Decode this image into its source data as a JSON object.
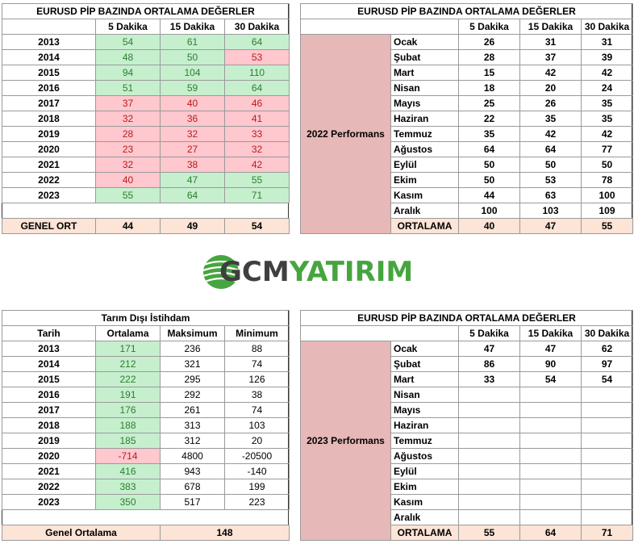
{
  "table1": {
    "title": "EURUSD  PİP BAZINDA ORTALAMA DEĞERLER",
    "headers": [
      "",
      "5 Dakika",
      "15 Dakika",
      "30 Dakika"
    ],
    "rows": [
      {
        "year": "2013",
        "v5": "54",
        "v15": "61",
        "v30": "64",
        "c5": "g",
        "c15": "g",
        "c30": "g"
      },
      {
        "year": "2014",
        "v5": "48",
        "v15": "50",
        "v30": "53",
        "c5": "g",
        "c15": "g",
        "c30": "r"
      },
      {
        "year": "2015",
        "v5": "94",
        "v15": "104",
        "v30": "110",
        "c5": "g",
        "c15": "g",
        "c30": "g"
      },
      {
        "year": "2016",
        "v5": "51",
        "v15": "59",
        "v30": "64",
        "c5": "g",
        "c15": "g",
        "c30": "g"
      },
      {
        "year": "2017",
        "v5": "37",
        "v15": "40",
        "v30": "46",
        "c5": "r",
        "c15": "r",
        "c30": "r"
      },
      {
        "year": "2018",
        "v5": "32",
        "v15": "36",
        "v30": "41",
        "c5": "r",
        "c15": "r",
        "c30": "r"
      },
      {
        "year": "2019",
        "v5": "28",
        "v15": "32",
        "v30": "33",
        "c5": "r",
        "c15": "r",
        "c30": "r"
      },
      {
        "year": "2020",
        "v5": "23",
        "v15": "27",
        "v30": "32",
        "c5": "r",
        "c15": "r",
        "c30": "r"
      },
      {
        "year": "2021",
        "v5": "32",
        "v15": "38",
        "v30": "42",
        "c5": "r",
        "c15": "r",
        "c30": "r"
      },
      {
        "year": "2022",
        "v5": "40",
        "v15": "47",
        "v30": "55",
        "c5": "r",
        "c15": "g",
        "c30": "g"
      },
      {
        "year": "2023",
        "v5": "55",
        "v15": "64",
        "v30": "71",
        "c5": "g",
        "c15": "g",
        "c30": "g"
      }
    ],
    "footer": {
      "label": "GENEL ORT",
      "v5": "44",
      "v15": "49",
      "v30": "54"
    }
  },
  "table2": {
    "title": "EURUSD  PİP BAZINDA ORTALAMA DEĞERLER",
    "headers": [
      "5 Dakika",
      "15 Dakika",
      "30 Dakika"
    ],
    "side_label": "2022 Performans",
    "rows": [
      {
        "month": "Ocak",
        "v5": "26",
        "v15": "31",
        "v30": "31"
      },
      {
        "month": "Şubat",
        "v5": "28",
        "v15": "37",
        "v30": "39"
      },
      {
        "month": "Mart",
        "v5": "15",
        "v15": "42",
        "v30": "42"
      },
      {
        "month": "Nisan",
        "v5": "18",
        "v15": "20",
        "v30": "24"
      },
      {
        "month": "Mayıs",
        "v5": "25",
        "v15": "26",
        "v30": "35"
      },
      {
        "month": "Haziran",
        "v5": "22",
        "v15": "35",
        "v30": "35"
      },
      {
        "month": "Temmuz",
        "v5": "35",
        "v15": "42",
        "v30": "42"
      },
      {
        "month": "Ağustos",
        "v5": "64",
        "v15": "64",
        "v30": "77"
      },
      {
        "month": "Eylül",
        "v5": "50",
        "v15": "50",
        "v30": "50"
      },
      {
        "month": "Ekim",
        "v5": "50",
        "v15": "53",
        "v30": "78"
      },
      {
        "month": "Kasım",
        "v5": "44",
        "v15": "63",
        "v30": "100"
      },
      {
        "month": "Aralık",
        "v5": "100",
        "v15": "103",
        "v30": "109"
      }
    ],
    "footer": {
      "label": "ORTALAMA",
      "v5": "40",
      "v15": "47",
      "v30": "55"
    }
  },
  "logo": {
    "part1": "GCM",
    "part2": "YATIRIM",
    "green": "#46a53f",
    "gray": "#3f3f3f"
  },
  "table3": {
    "title": "Tarım Dışı İstihdam",
    "headers": [
      "Tarih",
      "Ortalama",
      "Maksimum",
      "Minimum"
    ],
    "rows": [
      {
        "year": "2013",
        "avg": "171",
        "max": "236",
        "min": "88",
        "c": "g"
      },
      {
        "year": "2014",
        "avg": "212",
        "max": "321",
        "min": "74",
        "c": "g"
      },
      {
        "year": "2015",
        "avg": "222",
        "max": "295",
        "min": "126",
        "c": "g"
      },
      {
        "year": "2016",
        "avg": "191",
        "max": "292",
        "min": "38",
        "c": "g"
      },
      {
        "year": "2017",
        "avg": "176",
        "max": "261",
        "min": "74",
        "c": "g"
      },
      {
        "year": "2018",
        "avg": "188",
        "max": "313",
        "min": "103",
        "c": "g"
      },
      {
        "year": "2019",
        "avg": "185",
        "max": "312",
        "min": "20",
        "c": "g"
      },
      {
        "year": "2020",
        "avg": "-714",
        "max": "4800",
        "min": "-20500",
        "c": "r"
      },
      {
        "year": "2021",
        "avg": "416",
        "max": "943",
        "min": "-140",
        "c": "g"
      },
      {
        "year": "2022",
        "avg": "383",
        "max": "678",
        "min": "199",
        "c": "g"
      },
      {
        "year": "2023",
        "avg": "350",
        "max": "517",
        "min": "223",
        "c": "g"
      }
    ],
    "footer": {
      "label": "Genel Ortalama",
      "value": "148"
    }
  },
  "table4": {
    "title": "EURUSD  PİP BAZINDA ORTALAMA DEĞERLER",
    "headers": [
      "5 Dakika",
      "15 Dakika",
      "30 Dakika"
    ],
    "side_label": "2023 Performans",
    "rows": [
      {
        "month": "Ocak",
        "v5": "47",
        "v15": "47",
        "v30": "62"
      },
      {
        "month": "Şubat",
        "v5": "86",
        "v15": "90",
        "v30": "97"
      },
      {
        "month": "Mart",
        "v5": "33",
        "v15": "54",
        "v30": "54"
      },
      {
        "month": "Nisan",
        "v5": "",
        "v15": "",
        "v30": ""
      },
      {
        "month": "Mayıs",
        "v5": "",
        "v15": "",
        "v30": ""
      },
      {
        "month": "Haziran",
        "v5": "",
        "v15": "",
        "v30": ""
      },
      {
        "month": "Temmuz",
        "v5": "",
        "v15": "",
        "v30": ""
      },
      {
        "month": "Ağustos",
        "v5": "",
        "v15": "",
        "v30": ""
      },
      {
        "month": "Eylül",
        "v5": "",
        "v15": "",
        "v30": ""
      },
      {
        "month": "Ekim",
        "v5": "",
        "v15": "",
        "v30": ""
      },
      {
        "month": "Kasım",
        "v5": "",
        "v15": "",
        "v30": ""
      },
      {
        "month": "Aralık",
        "v5": "",
        "v15": "",
        "v30": ""
      }
    ],
    "footer": {
      "label": "ORTALAMA",
      "v5": "55",
      "v15": "64",
      "v30": "71"
    }
  }
}
